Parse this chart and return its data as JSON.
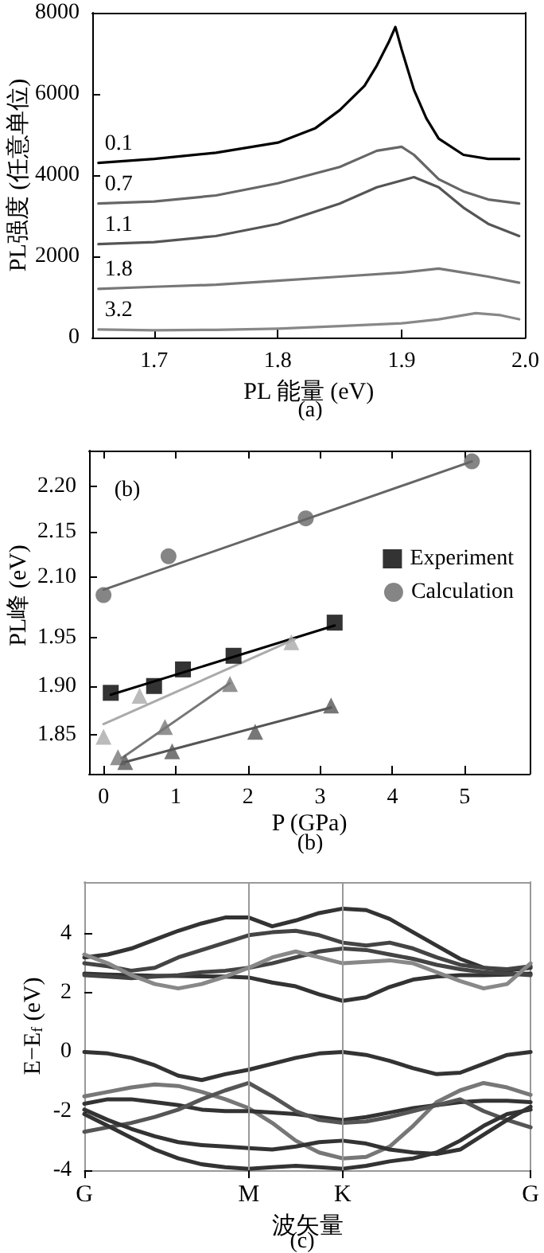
{
  "chart_data": [
    {
      "type": "line",
      "xlabel": "PL 能量 (eV)",
      "ylabel": "PL强度 (任意单位)",
      "annotations": [
        "(a)"
      ],
      "xlim": [
        1.65,
        2.0
      ],
      "xticks": [
        1.7,
        1.8,
        1.9,
        {
          "value": 2,
          "label": "2.0"
        }
      ],
      "ylim": [
        0,
        8000
      ],
      "yticks": [
        0,
        2000,
        4000,
        6000,
        8000
      ],
      "grid": false,
      "legend": false,
      "marker": "none",
      "series": [
        {
          "name": "0.1",
          "color": "#000000",
          "x": [
            1.655,
            1.7,
            1.75,
            1.8,
            1.83,
            1.85,
            1.87,
            1.88,
            1.89,
            1.895,
            1.9,
            1.91,
            1.92,
            1.93,
            1.95,
            1.97,
            1.995
          ],
          "values": [
            4300,
            4400,
            4550,
            4800,
            5150,
            5600,
            6200,
            6700,
            7300,
            7650,
            7100,
            6100,
            5400,
            4900,
            4500,
            4400,
            4400
          ]
        },
        {
          "name": "0.7",
          "color": "#666666",
          "x": [
            1.655,
            1.7,
            1.75,
            1.8,
            1.85,
            1.88,
            1.9,
            1.91,
            1.93,
            1.95,
            1.97,
            1.995
          ],
          "values": [
            3300,
            3350,
            3500,
            3800,
            4200,
            4600,
            4700,
            4500,
            3900,
            3600,
            3400,
            3300
          ]
        },
        {
          "name": "1.1",
          "color": "#555555",
          "x": [
            1.655,
            1.7,
            1.75,
            1.8,
            1.85,
            1.88,
            1.91,
            1.93,
            1.95,
            1.97,
            1.995
          ],
          "values": [
            2300,
            2350,
            2500,
            2800,
            3300,
            3700,
            3950,
            3700,
            3200,
            2800,
            2500
          ]
        },
        {
          "name": "1.8",
          "color": "#777777",
          "x": [
            1.655,
            1.7,
            1.75,
            1.8,
            1.85,
            1.9,
            1.93,
            1.95,
            1.97,
            1.995
          ],
          "values": [
            1200,
            1250,
            1300,
            1400,
            1500,
            1600,
            1700,
            1600,
            1500,
            1350
          ]
        },
        {
          "name": "3.2",
          "color": "#888888",
          "x": [
            1.655,
            1.7,
            1.75,
            1.8,
            1.85,
            1.9,
            1.93,
            1.96,
            1.98,
            1.995
          ],
          "values": [
            200,
            180,
            190,
            220,
            280,
            350,
            450,
            600,
            550,
            450
          ]
        }
      ]
    },
    {
      "type": "scatter",
      "annotations": [
        "(b)"
      ],
      "xlim": [
        -0.2,
        5.9
      ],
      "xticks": [
        0,
        1,
        2,
        3,
        4,
        5
      ],
      "ylim": [
        2.055,
        2.24
      ],
      "yticks": [
        {
          "value": 2.1,
          "label": "2.10"
        },
        2.15,
        {
          "value": 2.2,
          "label": "2.20"
        }
      ],
      "tick_labels": "y",
      "grid": false,
      "legend": "bottom right",
      "series": [
        {
          "name": "Calculation",
          "type": "scatter",
          "marker": "circle",
          "color": "#666666",
          "x": [
            0,
            0.9,
            2.8,
            5.1
          ],
          "values": [
            2.08,
            2.123,
            2.165,
            2.228
          ]
        },
        {
          "type": "line",
          "marker": "none",
          "color": "#666666",
          "x": [
            0,
            5.1
          ],
          "values": [
            2.086,
            2.228
          ]
        }
      ]
    },
    {
      "type": "scatter",
      "xlabel": "P (GPa)",
      "ylabel": "PL峰 (eV)",
      "annotations": [
        "(b)"
      ],
      "xlim": [
        -0.2,
        5.9
      ],
      "xticks": [
        0,
        1,
        2,
        3,
        4,
        5
      ],
      "ylim": [
        1.81,
        1.97
      ],
      "yticks": [
        1.85,
        {
          "value": 1.9,
          "label": "1.90"
        },
        1.95
      ],
      "grid": false,
      "legend": "top right",
      "series": [
        {
          "name": "Experiment",
          "type": "scatter",
          "marker": "square",
          "color": "#000000",
          "x": [
            0.1,
            0.7,
            1.1,
            1.8,
            3.2
          ],
          "values": [
            1.893,
            1.9,
            1.917,
            1.931,
            1.965
          ]
        },
        {
          "type": "line",
          "marker": "none",
          "color": "#000000",
          "x": [
            0.1,
            3.2
          ],
          "values": [
            1.891,
            1.962
          ]
        },
        {
          "type": "scatter",
          "marker": "triangle",
          "color": "#aaaaaa",
          "x": [
            0,
            0.5,
            2.6
          ],
          "values": [
            1.848,
            1.89,
            1.945
          ]
        },
        {
          "type": "line",
          "marker": "none",
          "color": "#aaaaaa",
          "x": [
            0,
            2.65
          ],
          "values": [
            1.861,
            1.948
          ]
        },
        {
          "type": "scatter",
          "marker": "triangle",
          "color": "#777777",
          "x": [
            0.2,
            0.85,
            1.75
          ],
          "values": [
            1.827,
            1.858,
            1.902
          ]
        },
        {
          "type": "line",
          "marker": "none",
          "color": "#777777",
          "x": [
            0.25,
            1.75
          ],
          "values": [
            1.826,
            1.903
          ]
        },
        {
          "type": "scatter",
          "marker": "triangle",
          "color": "#555555",
          "x": [
            0.3,
            0.95,
            2.1,
            3.15
          ],
          "values": [
            1.822,
            1.833,
            1.853,
            1.88
          ]
        },
        {
          "type": "line",
          "marker": "none",
          "color": "#555555",
          "x": [
            0.3,
            3.15
          ],
          "values": [
            1.822,
            1.878
          ]
        }
      ]
    },
    {
      "type": "line",
      "xlabel": "波矢量",
      "ylabel": "E−E$_{f}$ (eV)",
      "annotations": [
        "(c)"
      ],
      "categories": [
        "G",
        null,
        null,
        null,
        null,
        null,
        null,
        "M",
        null,
        null,
        null,
        "K",
        null,
        null,
        null,
        null,
        null,
        null,
        null,
        "G"
      ],
      "ylim": [
        -4,
        5.75
      ],
      "yticks": [
        -4,
        -2,
        0,
        2,
        4
      ],
      "grid": false,
      "legend": false,
      "marker": "none",
      "ref_lines": [
        {
          "axis": "x",
          "value": "M",
          "color": "#999999"
        },
        {
          "axis": "x",
          "value": "K",
          "color": "#999999"
        }
      ],
      "series": [
        {
          "color": "#333333",
          "values": [
            2.65,
            2.62,
            2.6,
            2.58,
            2.57,
            2.56,
            2.55,
            2.52,
            2.35,
            2.22,
            1.95,
            1.73,
            1.85,
            2.2,
            2.45,
            2.55,
            2.6,
            2.6,
            2.62,
            2.65
          ]
        },
        {
          "color": "#333333",
          "values": [
            3.2,
            3.3,
            3.5,
            3.8,
            4.1,
            4.35,
            4.55,
            4.55,
            4.25,
            4.45,
            4.7,
            4.85,
            4.8,
            4.5,
            4.05,
            3.6,
            3.15,
            2.85,
            2.75,
            2.85
          ]
        },
        {
          "color": "#444444",
          "values": [
            3.0,
            2.9,
            2.75,
            2.85,
            3.2,
            3.45,
            3.7,
            3.95,
            4.05,
            4.1,
            3.95,
            3.7,
            3.6,
            3.7,
            3.5,
            3.2,
            2.95,
            2.85,
            2.8,
            2.9
          ]
        },
        {
          "color": "#444444",
          "values": [
            2.6,
            2.55,
            2.5,
            2.55,
            2.6,
            2.7,
            2.75,
            2.85,
            3.0,
            3.2,
            3.4,
            3.5,
            3.45,
            3.3,
            3.15,
            2.95,
            2.8,
            2.7,
            2.65,
            2.6
          ]
        },
        {
          "color": "#888888",
          "values": [
            3.3,
            3.0,
            2.6,
            2.3,
            2.15,
            2.3,
            2.55,
            2.85,
            3.2,
            3.4,
            3.2,
            3.0,
            3.05,
            3.1,
            3.0,
            2.7,
            2.4,
            2.15,
            2.3,
            3.0
          ]
        },
        {
          "color": "#333333",
          "values": [
            0,
            -0.05,
            -0.2,
            -0.45,
            -0.8,
            -0.95,
            -0.75,
            -0.6,
            -0.4,
            -0.2,
            -0.05,
            0,
            -0.1,
            -0.3,
            -0.55,
            -0.75,
            -0.7,
            -0.4,
            -0.1,
            0
          ]
        },
        {
          "color": "#777777",
          "values": [
            -1.5,
            -1.35,
            -1.2,
            -1.1,
            -1.15,
            -1.35,
            -1.6,
            -1.9,
            -2.4,
            -3.0,
            -3.4,
            -3.6,
            -3.55,
            -3.2,
            -2.5,
            -1.7,
            -1.3,
            -1.05,
            -1.2,
            -1.45
          ]
        },
        {
          "color": "#333333",
          "values": [
            -1.75,
            -1.6,
            -1.6,
            -1.7,
            -1.8,
            -1.95,
            -2.0,
            -2.0,
            -2.05,
            -2.1,
            -2.2,
            -2.3,
            -2.2,
            -2.05,
            -1.9,
            -1.8,
            -1.7,
            -1.65,
            -1.65,
            -1.7
          ]
        },
        {
          "color": "#555555",
          "values": [
            -2.7,
            -2.55,
            -2.4,
            -2.2,
            -1.95,
            -1.6,
            -1.3,
            -1.05,
            -1.5,
            -2.0,
            -2.3,
            -2.4,
            -2.35,
            -2.2,
            -2.0,
            -1.8,
            -1.6,
            -2.0,
            -2.3,
            -2.55
          ]
        },
        {
          "color": "#333333",
          "values": [
            -1.95,
            -2.3,
            -2.6,
            -2.85,
            -3.05,
            -3.15,
            -3.2,
            -3.25,
            -3.3,
            -3.2,
            -3.05,
            -3.0,
            -3.1,
            -3.3,
            -3.4,
            -3.45,
            -3.3,
            -2.8,
            -2.3,
            -1.85
          ]
        },
        {
          "color": "#333333",
          "values": [
            -2.1,
            -2.5,
            -2.9,
            -3.3,
            -3.6,
            -3.8,
            -3.9,
            -3.95,
            -3.9,
            -3.85,
            -3.9,
            -3.95,
            -3.85,
            -3.7,
            -3.6,
            -3.4,
            -3.0,
            -2.5,
            -2.1,
            -1.95
          ]
        }
      ]
    }
  ]
}
